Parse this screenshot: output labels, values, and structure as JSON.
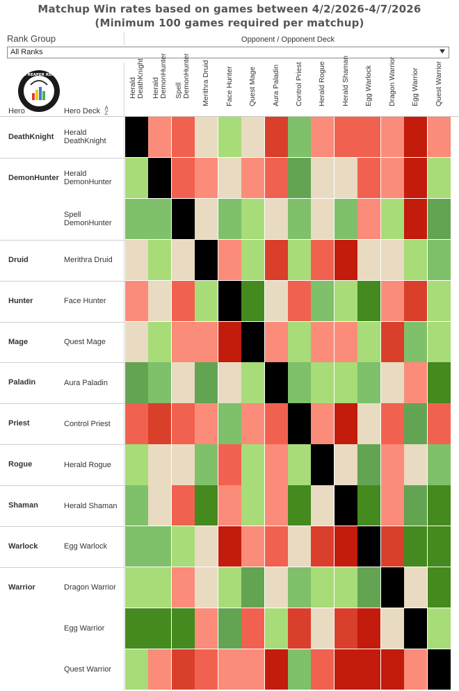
{
  "title_line1": "Matchup Win rates based on games between 4/2/2026-4/7/2026",
  "title_line2": "(Minimum 100 games required per matchup)",
  "filter": {
    "label": "Rank Group",
    "value": "All Ranks"
  },
  "logo_text": "DATA REAPER REPORT",
  "headers": {
    "hero": "Hero",
    "hero_deck": "Hero Deck"
  },
  "chart_data": {
    "type": "heatmap",
    "title": "Matchup Win rates based on games between 4/2/2026-4/7/2026",
    "subtitle": "(Minimum 100 games required per matchup)",
    "xlabel": "Opponent / Opponent Deck",
    "columns": [
      [
        "Herald",
        "DeathKnight"
      ],
      [
        "Herald",
        "DemonHunter"
      ],
      [
        "Spell",
        "DemonHunter"
      ],
      [
        "Merithra Druid"
      ],
      [
        "Face Hunter"
      ],
      [
        "Quest Mage"
      ],
      [
        "Aura Paladin"
      ],
      [
        "Control Priest"
      ],
      [
        "Herald Rogue"
      ],
      [
        "Herald Shaman"
      ],
      [
        "Egg Warlock"
      ],
      [
        "Dragon Warrior"
      ],
      [
        "Egg Warrior"
      ],
      [
        "Quest Warrior"
      ]
    ],
    "rows": [
      {
        "hero": "DeathKnight",
        "deck": [
          "Herald",
          "DeathKnight"
        ]
      },
      {
        "hero": "DemonHunter",
        "deck": [
          "Herald",
          "DemonHunter"
        ]
      },
      {
        "hero": "",
        "deck": [
          "Spell",
          "DemonHunter"
        ]
      },
      {
        "hero": "Druid",
        "deck": [
          "Merithra Druid"
        ]
      },
      {
        "hero": "Hunter",
        "deck": [
          "Face Hunter"
        ]
      },
      {
        "hero": "Mage",
        "deck": [
          "Quest Mage"
        ]
      },
      {
        "hero": "Paladin",
        "deck": [
          "Aura Paladin"
        ]
      },
      {
        "hero": "Priest",
        "deck": [
          "Control Priest"
        ]
      },
      {
        "hero": "Rogue",
        "deck": [
          "Herald Rogue"
        ]
      },
      {
        "hero": "Shaman",
        "deck": [
          "Herald Shaman"
        ]
      },
      {
        "hero": "Warlock",
        "deck": [
          "Egg Warlock"
        ]
      },
      {
        "hero": "Warrior",
        "deck": [
          "Dragon Warrior"
        ]
      },
      {
        "hero": "",
        "deck": [
          "Egg Warrior"
        ]
      },
      {
        "hero": "",
        "deck": [
          "Quest Warrior"
        ]
      }
    ],
    "color_scale": {
      "X": "#000000",
      "G4": "#448a1e",
      "G3": "#63a453",
      "G2": "#7fc06a",
      "G1": "#a8dc78",
      "N": "#e8dbc1",
      "R1": "#fb8c79",
      "R2": "#f0624f",
      "R3": "#d93f2b",
      "R4": "#c31b0c"
    },
    "matrix": [
      [
        "X",
        "R1",
        "R2",
        "N",
        "G1",
        "N",
        "R3",
        "G2",
        "R1",
        "R2",
        "R2",
        "R1",
        "R4",
        "R1"
      ],
      [
        "G1",
        "X",
        "R2",
        "R1",
        "N",
        "R1",
        "R2",
        "G3",
        "N",
        "N",
        "R2",
        "R1",
        "R4",
        "G1"
      ],
      [
        "G2",
        "G2",
        "X",
        "N",
        "G2",
        "G1",
        "N",
        "G2",
        "N",
        "G2",
        "R1",
        "G1",
        "R4",
        "G3"
      ],
      [
        "N",
        "G1",
        "N",
        "X",
        "R1",
        "G1",
        "R3",
        "G1",
        "R2",
        "R4",
        "N",
        "N",
        "G1",
        "G2"
      ],
      [
        "R1",
        "N",
        "R2",
        "G1",
        "X",
        "G4",
        "N",
        "R2",
        "G2",
        "G1",
        "G4",
        "R1",
        "R3",
        "G1"
      ],
      [
        "N",
        "G1",
        "R1",
        "R1",
        "R4",
        "X",
        "R1",
        "G1",
        "R1",
        "R1",
        "G1",
        "R3",
        "G2",
        "G1"
      ],
      [
        "G3",
        "G2",
        "N",
        "G3",
        "N",
        "G1",
        "X",
        "G2",
        "G1",
        "G1",
        "G2",
        "N",
        "R1",
        "G4"
      ],
      [
        "R2",
        "R3",
        "R2",
        "R1",
        "G2",
        "R1",
        "R2",
        "X",
        "R1",
        "R4",
        "N",
        "R2",
        "G3",
        "R2"
      ],
      [
        "G1",
        "N",
        "N",
        "G2",
        "R2",
        "G1",
        "R1",
        "G1",
        "X",
        "N",
        "G3",
        "R1",
        "N",
        "G2"
      ],
      [
        "G2",
        "N",
        "R2",
        "G4",
        "R1",
        "G1",
        "R1",
        "G4",
        "N",
        "X",
        "G4",
        "R1",
        "G3",
        "G4"
      ],
      [
        "G2",
        "G2",
        "G1",
        "N",
        "R4",
        "R1",
        "R2",
        "N",
        "R3",
        "R4",
        "X",
        "R3",
        "G4",
        "G4"
      ],
      [
        "G1",
        "G1",
        "R1",
        "N",
        "G1",
        "G3",
        "N",
        "G2",
        "G1",
        "G1",
        "G3",
        "X",
        "N",
        "G4"
      ],
      [
        "G4",
        "G4",
        "G4",
        "R1",
        "G3",
        "R2",
        "G1",
        "R3",
        "N",
        "R3",
        "R4",
        "N",
        "X",
        "G1"
      ],
      [
        "G1",
        "R1",
        "R3",
        "R2",
        "R1",
        "R1",
        "R4",
        "G2",
        "R2",
        "R4",
        "R4",
        "R4",
        "R1",
        "X"
      ]
    ]
  }
}
